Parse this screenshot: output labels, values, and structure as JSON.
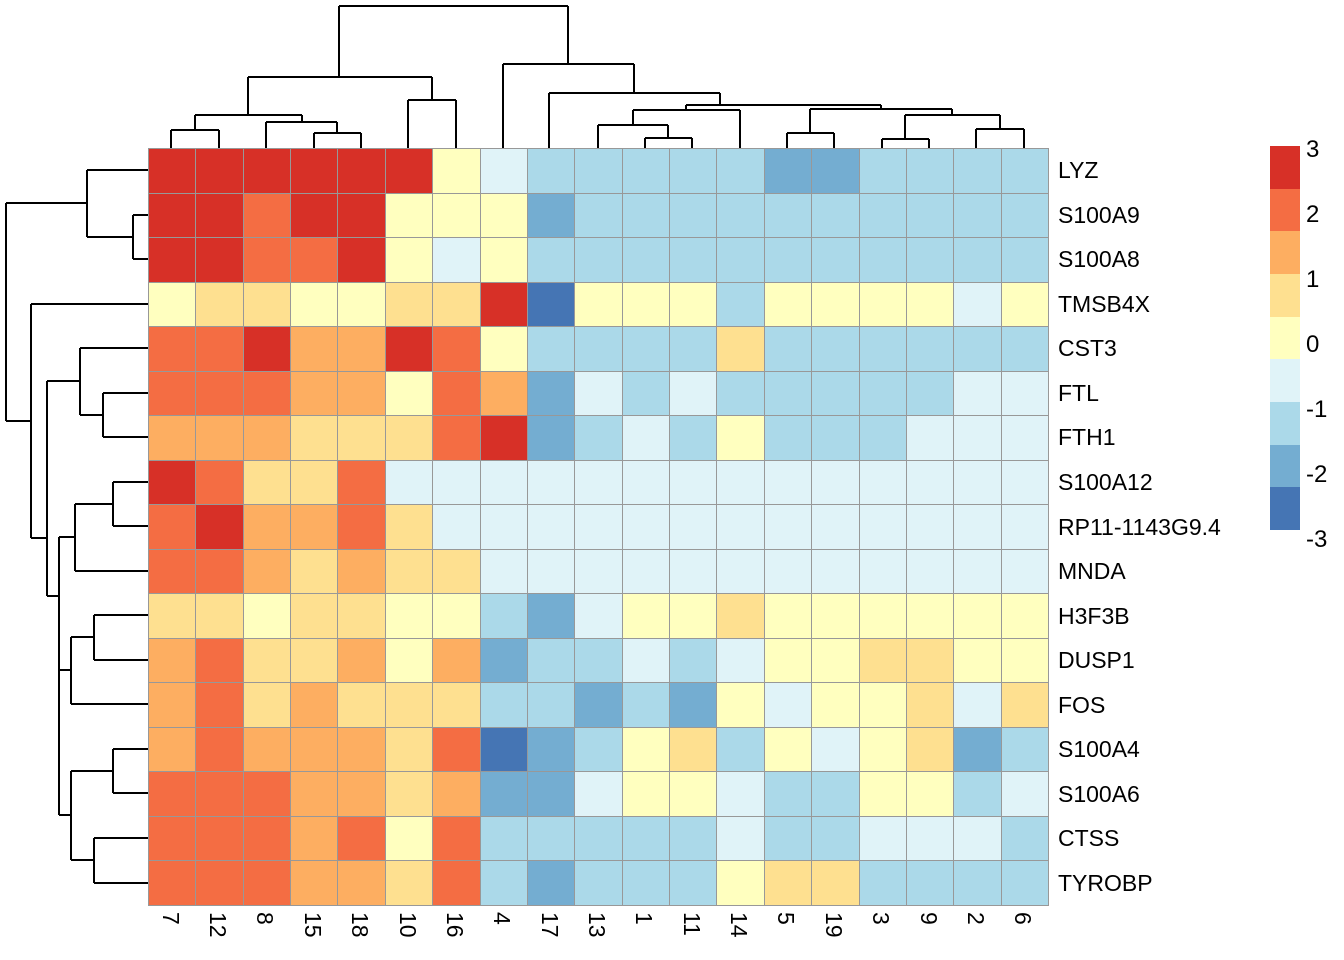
{
  "chart_data": {
    "type": "heatmap",
    "title": "",
    "xlabel": "",
    "ylabel": "",
    "columns": [
      "7",
      "12",
      "8",
      "15",
      "18",
      "10",
      "16",
      "4",
      "17",
      "13",
      "1",
      "11",
      "14",
      "5",
      "19",
      "3",
      "9",
      "2",
      "6"
    ],
    "rows": [
      "LYZ",
      "S100A9",
      "S100A8",
      "TMSB4X",
      "CST3",
      "FTL",
      "FTH1",
      "S100A12",
      "RP11-1143G9.4",
      "MNDA",
      "H3F3B",
      "DUSP1",
      "FOS",
      "S100A4",
      "S100A6",
      "CTSS",
      "TYROBP"
    ],
    "values": [
      [
        3,
        3,
        3,
        3,
        3,
        3,
        0,
        -0.5,
        -1,
        -1,
        -1,
        -1,
        -1,
        -2,
        -2,
        -1,
        -1,
        -1,
        -1
      ],
      [
        3,
        3,
        2,
        3,
        3,
        0,
        0,
        0,
        -2,
        -1,
        -1,
        -1,
        -1,
        -1,
        -1,
        -1,
        -1,
        -1,
        -1
      ],
      [
        3,
        3,
        2,
        2,
        3,
        0,
        -0.5,
        0,
        -1,
        -1,
        -1,
        -1,
        -1,
        -1,
        -1,
        -1,
        -1,
        -1,
        -1
      ],
      [
        0,
        1,
        1,
        0,
        0,
        1,
        1,
        3,
        -3,
        0,
        0,
        0,
        -1,
        0,
        0,
        0,
        0,
        -0.5,
        0
      ],
      [
        2,
        2,
        3,
        1.5,
        1.5,
        3,
        2,
        0,
        -1,
        -1,
        -1,
        -1,
        1,
        -1,
        -1,
        -1,
        -1,
        -1,
        -1
      ],
      [
        2,
        2,
        2,
        1.5,
        1.5,
        0,
        2,
        1.5,
        -2,
        -0.5,
        -1,
        -0.5,
        -1,
        -1,
        -1,
        -1,
        -1,
        -0.5,
        -0.5
      ],
      [
        1.5,
        1.5,
        1.5,
        1,
        1,
        1,
        2,
        3,
        -2,
        -1,
        -0.5,
        -1,
        0,
        -1,
        -1,
        -1,
        -0.5,
        -0.5,
        -0.5
      ],
      [
        3,
        2,
        1,
        1,
        2,
        -0.5,
        -0.5,
        -0.5,
        -0.5,
        -0.5,
        -0.5,
        -0.5,
        -0.5,
        -0.5,
        -0.5,
        -0.5,
        -0.5,
        -0.5,
        -0.5
      ],
      [
        2,
        3,
        1.5,
        1.5,
        2,
        1,
        -0.5,
        -0.5,
        -0.5,
        -0.5,
        -0.5,
        -0.5,
        -0.5,
        -0.5,
        -0.5,
        -0.5,
        -0.5,
        -0.5,
        -0.5
      ],
      [
        2,
        2,
        1.5,
        1,
        1.5,
        1,
        1,
        -0.5,
        -0.5,
        -0.5,
        -0.5,
        -0.5,
        -0.5,
        -0.5,
        -0.5,
        -0.5,
        -0.5,
        -0.5,
        -0.5
      ],
      [
        1,
        1,
        0,
        1,
        1,
        0,
        0,
        -1,
        -2,
        -0.5,
        0,
        0,
        1,
        0,
        0,
        0,
        0,
        0,
        0
      ],
      [
        1.5,
        2,
        1,
        1,
        1.5,
        0,
        1.5,
        -2,
        -1,
        -1,
        -0.5,
        -1,
        -0.5,
        0,
        0,
        1,
        1,
        0,
        0
      ],
      [
        1.5,
        2,
        1,
        1.5,
        1,
        1,
        1,
        -1,
        -1,
        -2,
        -1,
        -2,
        0,
        -0.5,
        0,
        0,
        1,
        -0.5,
        1
      ],
      [
        1.5,
        2,
        1.5,
        1.5,
        1.5,
        1,
        2,
        -3,
        -2,
        -1,
        0,
        1,
        -1,
        0,
        -0.5,
        0,
        1,
        -2,
        -1
      ],
      [
        2,
        2,
        2,
        1.5,
        1.5,
        1,
        1.5,
        -2,
        -2,
        -0.5,
        0,
        0,
        -0.5,
        -1,
        -1,
        0,
        0,
        -1,
        -0.5
      ],
      [
        2,
        2,
        2,
        1.5,
        2,
        0,
        2,
        -1,
        -1,
        -1,
        -1,
        -1,
        -0.5,
        -1,
        -1,
        -0.5,
        -0.5,
        -0.5,
        -1
      ],
      [
        2,
        2,
        2,
        1.5,
        1.5,
        1,
        2,
        -1,
        -2,
        -1,
        -1,
        -1,
        0,
        1,
        1,
        -1,
        -1,
        -1,
        -1
      ]
    ],
    "value_range": [
      -3,
      3
    ],
    "color_scale": {
      "scale_values": [
        3,
        2,
        1.5,
        1,
        0,
        -0.5,
        -1,
        -2,
        -3
      ],
      "scale_colors": [
        "#d73027",
        "#f46d43",
        "#fdae61",
        "#fee090",
        "#ffffbf",
        "#e0f3f8",
        "#abd9e9",
        "#74add1",
        "#4575b4"
      ],
      "grid_line_color": "#989898"
    },
    "legend": {
      "position": "right",
      "labels": [
        "3",
        "2",
        "1",
        "0",
        "-1",
        "-2",
        "-3"
      ],
      "colors": [
        "#d73027",
        "#f46d43",
        "#fdae61",
        "#fee090",
        "#ffffbf",
        "#e0f3f8",
        "#abd9e9",
        "#74add1",
        "#4575b4"
      ]
    },
    "col_dendrogram": {
      "segments": [
        [
          339,
          6,
          568,
          6
        ],
        [
          339,
          6,
          339,
          77
        ],
        [
          568,
          6,
          568,
          64
        ],
        [
          248,
          77,
          432,
          77
        ],
        [
          248,
          77,
          248,
          115
        ],
        [
          432,
          77,
          432,
          100
        ],
        [
          195,
          115,
          302,
          115
        ],
        [
          195,
          115,
          195,
          130
        ],
        [
          302,
          115,
          302,
          122
        ],
        [
          171,
          130,
          219,
          130
        ],
        [
          171,
          130,
          171,
          148
        ],
        [
          219,
          130,
          219,
          148
        ],
        [
          266,
          122,
          337,
          122
        ],
        [
          266,
          122,
          266,
          148
        ],
        [
          337,
          122,
          337,
          133
        ],
        [
          314,
          133,
          361,
          133
        ],
        [
          314,
          133,
          314,
          148
        ],
        [
          361,
          133,
          361,
          148
        ],
        [
          408,
          100,
          456,
          100
        ],
        [
          408,
          100,
          408,
          148
        ],
        [
          456,
          100,
          456,
          148
        ],
        [
          503,
          64,
          634,
          64
        ],
        [
          503,
          64,
          503,
          148
        ],
        [
          634,
          64,
          634,
          93
        ],
        [
          549,
          93,
          720,
          93
        ],
        [
          549,
          93,
          549,
          148
        ],
        [
          720,
          93,
          720,
          105
        ],
        [
          686,
          105,
          881,
          105
        ],
        [
          686,
          105,
          686,
          110
        ],
        [
          881,
          105,
          881,
          109
        ],
        [
          633,
          110,
          740,
          110
        ],
        [
          633,
          110,
          633,
          125
        ],
        [
          740,
          110,
          740,
          148
        ],
        [
          598,
          125,
          668,
          125
        ],
        [
          598,
          125,
          598,
          148
        ],
        [
          668,
          125,
          668,
          138
        ],
        [
          645,
          138,
          692,
          138
        ],
        [
          645,
          138,
          645,
          148
        ],
        [
          692,
          138,
          692,
          148
        ],
        [
          810,
          109,
          952,
          109
        ],
        [
          810,
          109,
          810,
          133
        ],
        [
          952,
          109,
          952,
          115
        ],
        [
          787,
          133,
          834,
          133
        ],
        [
          787,
          133,
          787,
          148
        ],
        [
          834,
          133,
          834,
          148
        ],
        [
          905,
          115,
          1000,
          115
        ],
        [
          905,
          115,
          905,
          139
        ],
        [
          1000,
          115,
          1000,
          129
        ],
        [
          882,
          139,
          929,
          139
        ],
        [
          882,
          139,
          882,
          148
        ],
        [
          929,
          139,
          929,
          148
        ],
        [
          976,
          129,
          1024,
          129
        ],
        [
          976,
          129,
          976,
          148
        ],
        [
          1024,
          129,
          1024,
          148
        ]
      ]
    },
    "row_dendrogram": {
      "segments": [
        [
          87,
          170,
          148,
          170
        ],
        [
          87,
          170,
          87,
          237
        ],
        [
          87,
          237,
          133,
          237
        ],
        [
          133,
          215,
          133,
          259
        ],
        [
          133,
          215,
          148,
          215
        ],
        [
          133,
          259,
          148,
          259
        ],
        [
          6,
          203,
          87,
          203
        ],
        [
          6,
          203,
          6,
          421
        ],
        [
          6,
          421,
          31,
          421
        ],
        [
          31,
          304,
          31,
          538
        ],
        [
          31,
          304,
          148,
          304
        ],
        [
          31,
          538,
          47,
          538
        ],
        [
          47,
          381,
          47,
          596
        ],
        [
          47,
          381,
          80,
          381
        ],
        [
          80,
          348,
          80,
          415
        ],
        [
          80,
          348,
          148,
          348
        ],
        [
          80,
          415,
          103,
          415
        ],
        [
          103,
          393,
          103,
          437
        ],
        [
          103,
          393,
          148,
          393
        ],
        [
          103,
          437,
          148,
          437
        ],
        [
          47,
          596,
          59,
          596
        ],
        [
          59,
          537,
          59,
          815
        ],
        [
          59,
          537,
          75,
          537
        ],
        [
          75,
          504,
          75,
          571
        ],
        [
          75,
          504,
          113,
          504
        ],
        [
          75,
          571,
          148,
          571
        ],
        [
          113,
          482,
          113,
          526
        ],
        [
          113,
          482,
          148,
          482
        ],
        [
          113,
          526,
          148,
          526
        ],
        [
          59,
          670,
          71,
          670
        ],
        [
          71,
          637,
          71,
          704
        ],
        [
          71,
          637,
          94,
          637
        ],
        [
          94,
          615,
          94,
          660
        ],
        [
          94,
          615,
          148,
          615
        ],
        [
          94,
          660,
          148,
          660
        ],
        [
          71,
          704,
          148,
          704
        ],
        [
          59,
          815,
          71,
          815
        ],
        [
          71,
          771,
          71,
          860
        ],
        [
          71,
          771,
          113,
          771
        ],
        [
          113,
          749,
          113,
          793
        ],
        [
          113,
          749,
          148,
          749
        ],
        [
          113,
          793,
          148,
          793
        ],
        [
          71,
          860,
          94,
          860
        ],
        [
          94,
          838,
          94,
          883
        ],
        [
          94,
          838,
          148,
          838
        ],
        [
          94,
          883,
          148,
          883
        ]
      ]
    }
  }
}
